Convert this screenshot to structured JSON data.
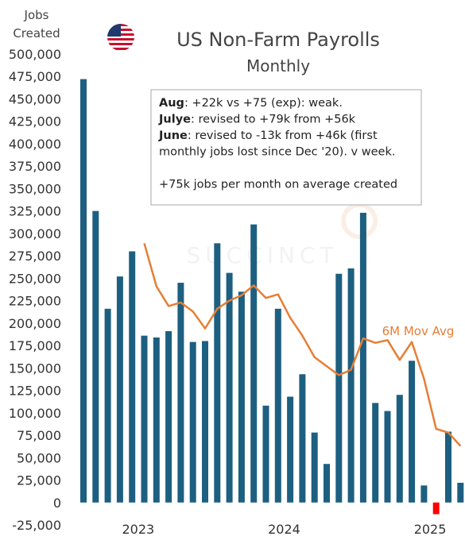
{
  "chart_data": {
    "type": "bar",
    "title": "US Non-Farm Payrolls",
    "subtitle": "Monthly",
    "ylabel_line1": "Jobs",
    "ylabel_line2": "Created",
    "ylim": [
      -25000,
      500000
    ],
    "yticks": [
      -25000,
      0,
      25000,
      50000,
      75000,
      100000,
      125000,
      150000,
      175000,
      200000,
      225000,
      250000,
      275000,
      300000,
      325000,
      350000,
      375000,
      400000,
      425000,
      450000,
      475000,
      500000
    ],
    "ytick_labels": [
      "-25,000",
      "0",
      "25,000",
      "50,000",
      "75,000",
      "100,000",
      "125,000",
      "150,000",
      "175,000",
      "200,000",
      "225,000",
      "250,000",
      "275,000",
      "300,000",
      "325,000",
      "350,000",
      "375,000",
      "400,000",
      "425,000",
      "450,000",
      "475,000",
      "500,000"
    ],
    "xtick_labels": [
      "2023",
      "2024",
      "2025"
    ],
    "xtick_positions": [
      4.5,
      16.5,
      28.5
    ],
    "series": [
      {
        "type": "bar",
        "color": "#1d5f80",
        "negative_color": "#ff0000",
        "values": [
          472000,
          325000,
          216000,
          252000,
          280000,
          186000,
          184000,
          191000,
          245000,
          179000,
          180000,
          289000,
          256000,
          235000,
          310000,
          108000,
          216000,
          118000,
          143000,
          78000,
          43000,
          255000,
          261000,
          323000,
          111000,
          102000,
          120000,
          158000,
          19000,
          -13000,
          79000,
          22000
        ]
      },
      {
        "name": "6M Mov Avg",
        "type": "line",
        "color": "#e67e35",
        "start_index": 5,
        "values": [
          289000,
          241000,
          219000,
          223000,
          213000,
          194000,
          216000,
          225000,
          231000,
          242000,
          228000,
          232000,
          206000,
          186000,
          162000,
          152000,
          142000,
          148000,
          183000,
          178000,
          181000,
          159000,
          179000,
          138000,
          82000,
          78000,
          63000
        ]
      }
    ],
    "annotations": [
      {
        "bold": "Aug",
        "text": ": +22k vs +75 (exp): weak."
      },
      {
        "bold": "Julye",
        "text": ": revised to +79k from +56k"
      },
      {
        "bold": "June",
        "text": ": revised to -13k from +46k (first"
      },
      {
        "bold": "",
        "text": "monthly jobs lost since Dec '20). v week."
      },
      {
        "bold": "",
        "text": ""
      },
      {
        "bold": "",
        "text": "+75k jobs per month on average created"
      }
    ],
    "watermark": "SUCCINCT",
    "flag": "us-flag-icon"
  }
}
